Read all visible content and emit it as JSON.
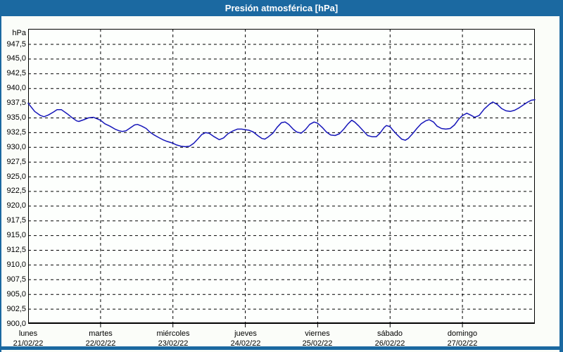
{
  "window": {
    "title": "Presión atmosférica [hPa]"
  },
  "colors": {
    "frame_blue": "#1b69a1",
    "title_text": "#ffffff",
    "page_bg": "#fbfdf9",
    "plot_bg": "#fdfffd",
    "grid_color": "#000000",
    "axis_text": "#000000",
    "series_line": "#1616b9"
  },
  "chart_data": {
    "type": "line",
    "title": "Presión atmosférica [hPa]",
    "ylabel": "hPa",
    "ylim": [
      900,
      947.5
    ],
    "ytick_step": 2.5,
    "ytick_labels": [
      "947,5",
      "945,0",
      "942,5",
      "940,0",
      "937,5",
      "935,0",
      "932,5",
      "930,0",
      "927,5",
      "925,0",
      "922,5",
      "920,0",
      "917,5",
      "915,0",
      "912,5",
      "910,0",
      "907,5",
      "905,0",
      "902,5",
      "900,0"
    ],
    "grid": "dashed",
    "legend_position": "none",
    "x_axis": {
      "range_days": [
        0,
        7
      ],
      "days": [
        {
          "name": "lunes",
          "date": "21/02/22"
        },
        {
          "name": "martes",
          "date": "22/02/22"
        },
        {
          "name": "miércoles",
          "date": "23/02/22"
        },
        {
          "name": "jueves",
          "date": "24/02/22"
        },
        {
          "name": "viernes",
          "date": "25/02/22"
        },
        {
          "name": "sábado",
          "date": "26/02/22"
        },
        {
          "name": "domingo",
          "date": "27/02/22"
        }
      ]
    },
    "series": [
      {
        "name": "Presión atmosférica",
        "unit": "hPa",
        "points_day_hpa": [
          [
            0.0,
            937.5
          ],
          [
            0.09,
            936.1
          ],
          [
            0.17,
            935.4
          ],
          [
            0.22,
            935.2
          ],
          [
            0.28,
            935.5
          ],
          [
            0.35,
            936.0
          ],
          [
            0.4,
            936.4
          ],
          [
            0.46,
            936.4
          ],
          [
            0.54,
            935.7
          ],
          [
            0.6,
            935.1
          ],
          [
            0.67,
            934.5
          ],
          [
            0.7,
            934.4
          ],
          [
            0.77,
            934.7
          ],
          [
            0.83,
            935.0
          ],
          [
            0.9,
            935.1
          ],
          [
            0.96,
            934.8
          ],
          [
            1.0,
            934.6
          ],
          [
            1.06,
            934.0
          ],
          [
            1.13,
            933.6
          ],
          [
            1.2,
            933.1
          ],
          [
            1.26,
            932.8
          ],
          [
            1.3,
            932.7
          ],
          [
            1.35,
            932.8
          ],
          [
            1.41,
            933.3
          ],
          [
            1.47,
            933.8
          ],
          [
            1.51,
            933.9
          ],
          [
            1.57,
            933.6
          ],
          [
            1.63,
            933.2
          ],
          [
            1.68,
            932.6
          ],
          [
            1.74,
            932.1
          ],
          [
            1.8,
            931.7
          ],
          [
            1.86,
            931.3
          ],
          [
            1.92,
            931.0
          ],
          [
            2.0,
            930.7
          ],
          [
            2.05,
            930.4
          ],
          [
            2.11,
            930.2
          ],
          [
            2.17,
            930.1
          ],
          [
            2.23,
            930.2
          ],
          [
            2.29,
            930.7
          ],
          [
            2.35,
            931.5
          ],
          [
            2.4,
            932.2
          ],
          [
            2.45,
            932.5
          ],
          [
            2.5,
            932.4
          ],
          [
            2.57,
            931.8
          ],
          [
            2.64,
            931.3
          ],
          [
            2.7,
            931.6
          ],
          [
            2.76,
            932.3
          ],
          [
            2.83,
            932.8
          ],
          [
            2.89,
            933.1
          ],
          [
            2.95,
            933.1
          ],
          [
            3.0,
            933.0
          ],
          [
            3.05,
            932.9
          ],
          [
            3.11,
            932.6
          ],
          [
            3.17,
            932.0
          ],
          [
            3.23,
            931.5
          ],
          [
            3.27,
            931.4
          ],
          [
            3.32,
            931.8
          ],
          [
            3.38,
            932.4
          ],
          [
            3.44,
            933.4
          ],
          [
            3.5,
            934.2
          ],
          [
            3.55,
            934.3
          ],
          [
            3.6,
            933.9
          ],
          [
            3.66,
            933.1
          ],
          [
            3.71,
            932.6
          ],
          [
            3.77,
            932.4
          ],
          [
            3.83,
            933.0
          ],
          [
            3.89,
            933.9
          ],
          [
            3.95,
            934.3
          ],
          [
            4.0,
            934.1
          ],
          [
            4.07,
            933.3
          ],
          [
            4.12,
            932.6
          ],
          [
            4.18,
            932.1
          ],
          [
            4.24,
            932.0
          ],
          [
            4.3,
            932.3
          ],
          [
            4.36,
            933.1
          ],
          [
            4.42,
            934.0
          ],
          [
            4.47,
            934.6
          ],
          [
            4.51,
            934.3
          ],
          [
            4.57,
            933.6
          ],
          [
            4.63,
            932.8
          ],
          [
            4.69,
            932.0
          ],
          [
            4.75,
            931.8
          ],
          [
            4.81,
            931.8
          ],
          [
            4.86,
            932.4
          ],
          [
            4.92,
            933.4
          ],
          [
            4.95,
            933.7
          ],
          [
            5.0,
            933.5
          ],
          [
            5.04,
            932.9
          ],
          [
            5.1,
            932.1
          ],
          [
            5.16,
            931.4
          ],
          [
            5.21,
            931.2
          ],
          [
            5.25,
            931.5
          ],
          [
            5.31,
            932.3
          ],
          [
            5.37,
            933.2
          ],
          [
            5.43,
            934.0
          ],
          [
            5.49,
            934.5
          ],
          [
            5.54,
            934.7
          ],
          [
            5.6,
            934.3
          ],
          [
            5.65,
            933.6
          ],
          [
            5.71,
            933.2
          ],
          [
            5.77,
            933.1
          ],
          [
            5.83,
            933.2
          ],
          [
            5.89,
            933.8
          ],
          [
            5.95,
            934.8
          ],
          [
            6.0,
            935.4
          ],
          [
            6.06,
            935.8
          ],
          [
            6.11,
            935.5
          ],
          [
            6.17,
            935.1
          ],
          [
            6.23,
            935.4
          ],
          [
            6.3,
            936.5
          ],
          [
            6.37,
            937.3
          ],
          [
            6.42,
            937.7
          ],
          [
            6.48,
            937.3
          ],
          [
            6.54,
            936.6
          ],
          [
            6.6,
            936.2
          ],
          [
            6.66,
            936.1
          ],
          [
            6.72,
            936.3
          ],
          [
            6.78,
            936.7
          ],
          [
            6.83,
            937.1
          ],
          [
            6.89,
            937.6
          ],
          [
            6.95,
            938.0
          ],
          [
            7.0,
            938.1
          ]
        ]
      }
    ]
  }
}
